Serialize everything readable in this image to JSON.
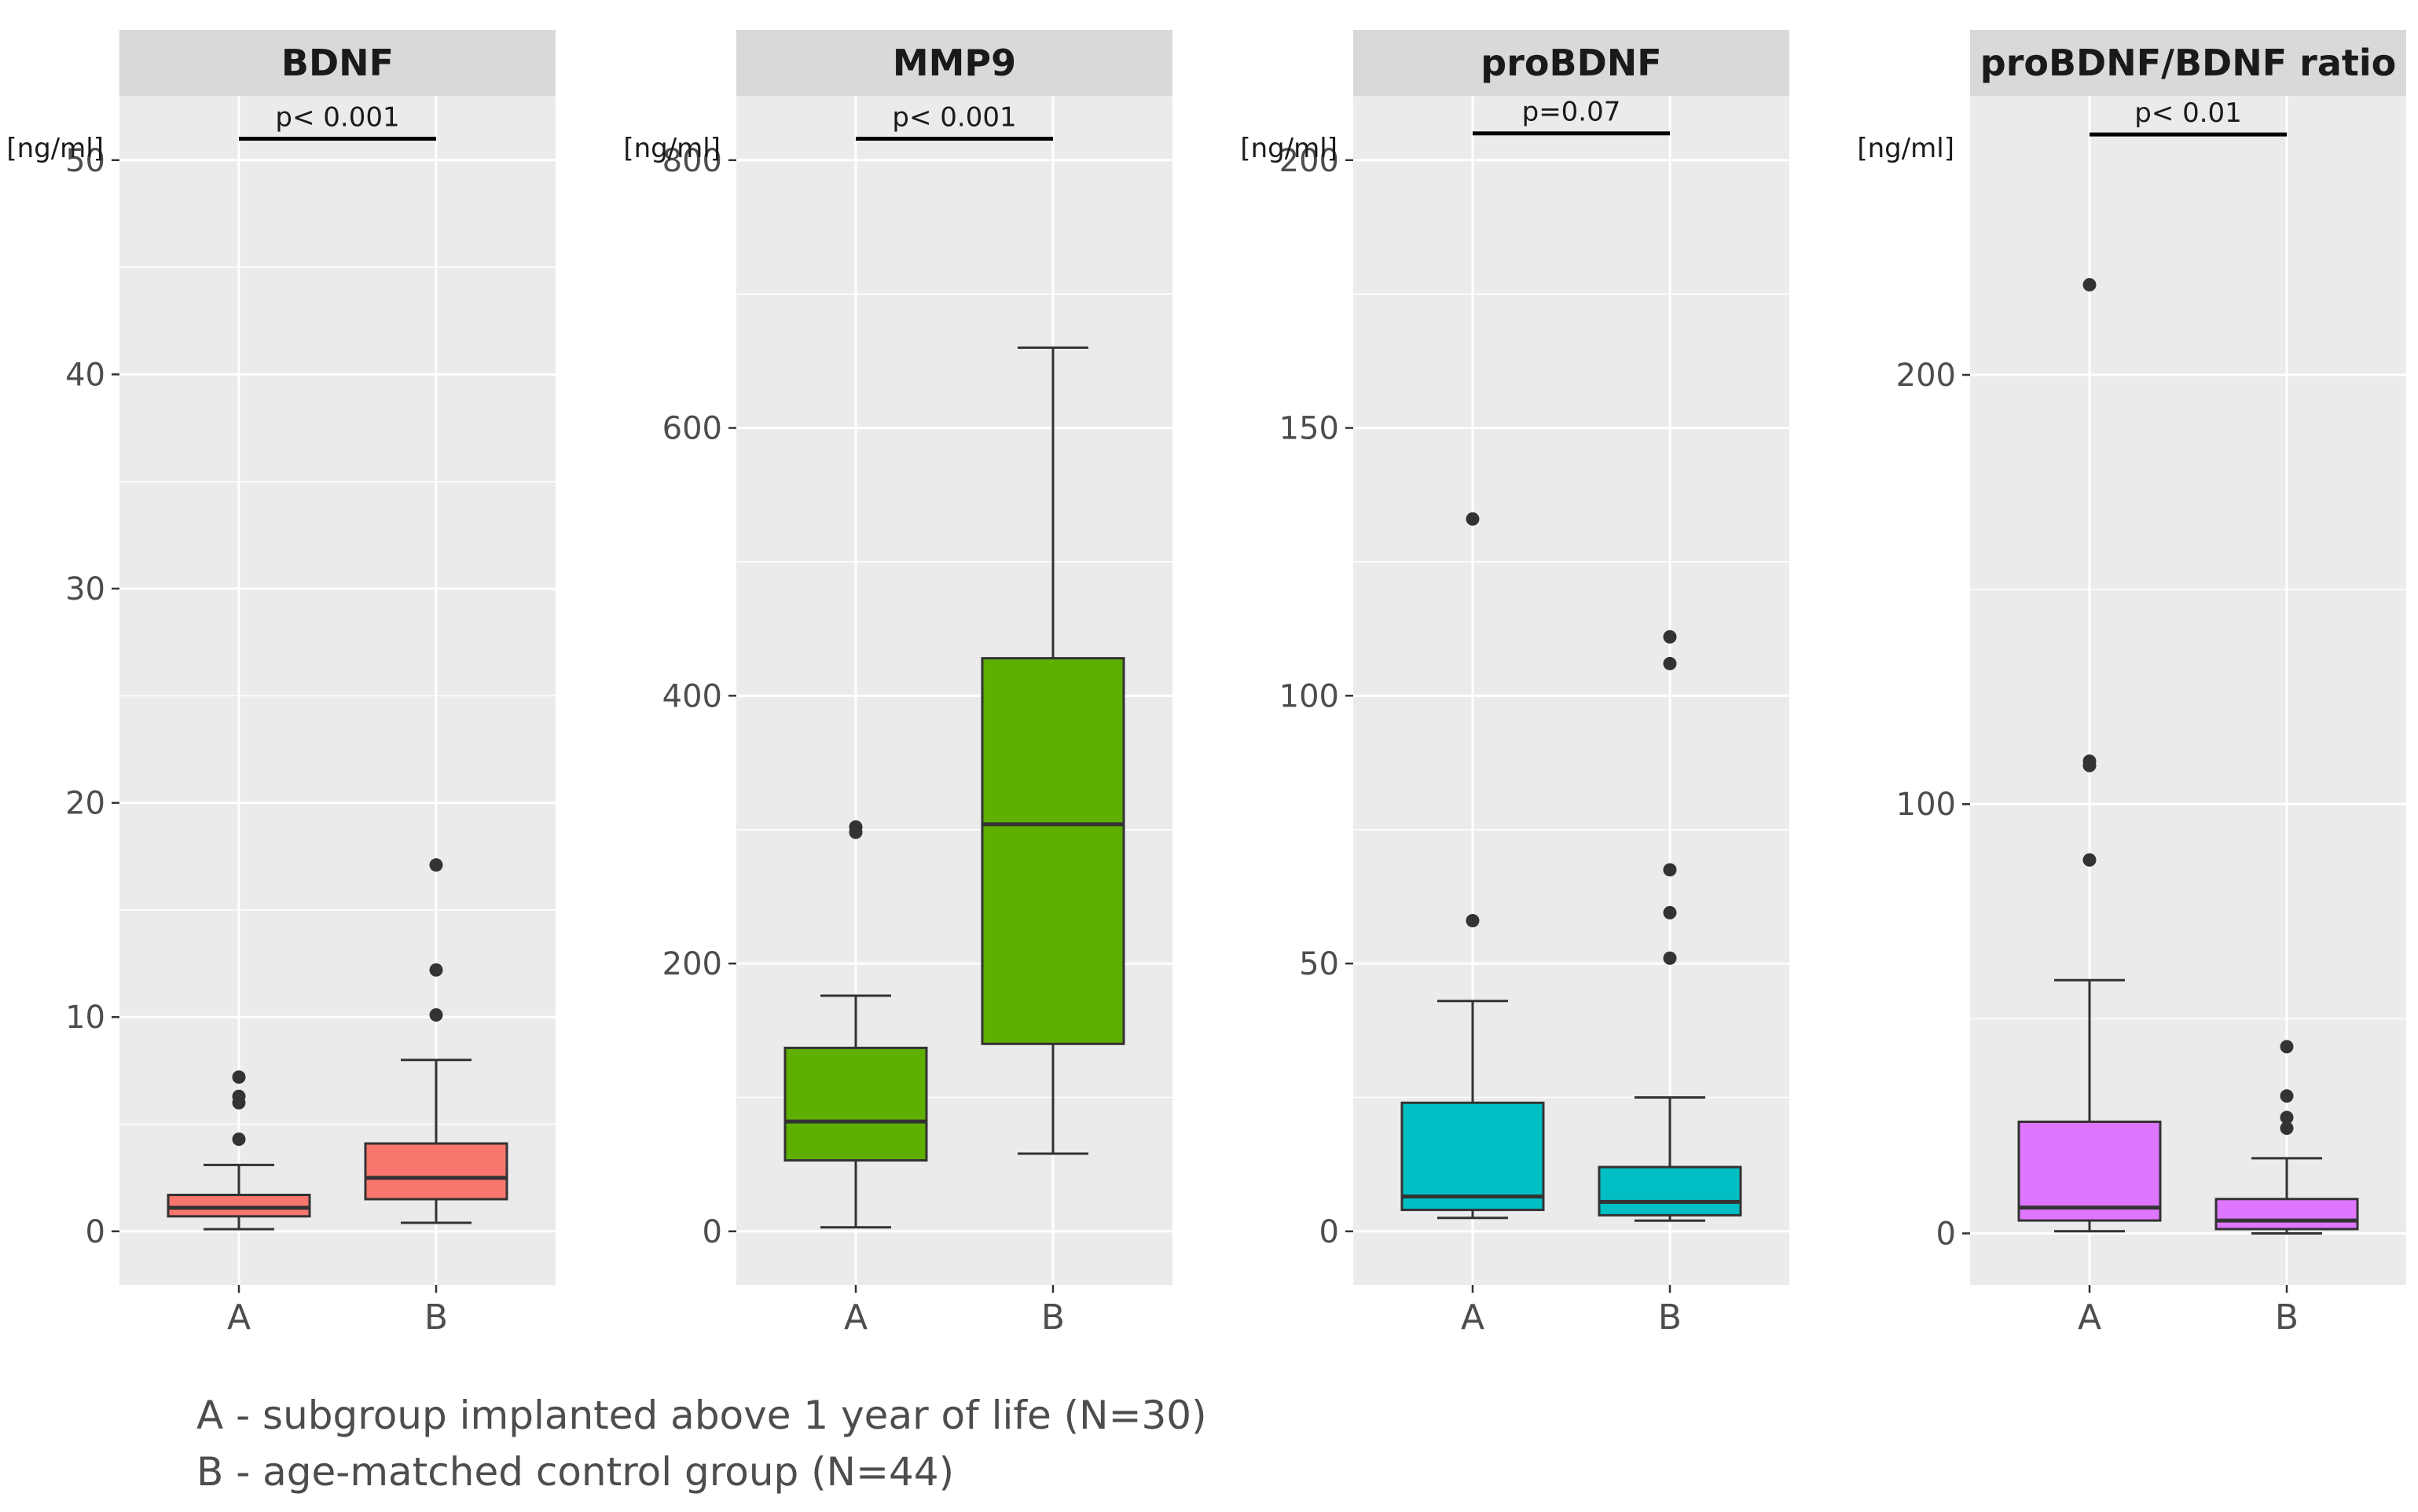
{
  "chart_data": [
    {
      "type": "boxplot",
      "title": "BDNF",
      "ylabel": "[ng/ml]",
      "ylim": [
        -2.5,
        53
      ],
      "yticks": [
        0,
        10,
        20,
        30,
        40,
        50
      ],
      "gridlines": true,
      "categories": [
        "A",
        "B"
      ],
      "fill": "#F8766D",
      "boxes": [
        {
          "group": "A",
          "whisker_low": 0.1,
          "q1": 0.7,
          "median": 1.1,
          "q3": 1.7,
          "whisker_high": 3.1,
          "outliers": [
            4.3,
            6.0,
            6.3,
            7.2
          ]
        },
        {
          "group": "B",
          "whisker_low": 0.4,
          "q1": 1.5,
          "median": 2.5,
          "q3": 4.1,
          "whisker_high": 8.0,
          "outliers": [
            10.1,
            12.2,
            17.1
          ]
        }
      ],
      "significance": {
        "label": "p< 0.001",
        "y": 51
      }
    },
    {
      "type": "boxplot",
      "title": "MMP9",
      "ylabel": "[ng/ml]",
      "ylim": [
        -40,
        848
      ],
      "yticks": [
        0,
        200,
        400,
        600,
        800
      ],
      "gridlines": true,
      "categories": [
        "A",
        "B"
      ],
      "fill": "#5EAF00",
      "boxes": [
        {
          "group": "A",
          "whisker_low": 3,
          "q1": 53,
          "median": 82,
          "q3": 137,
          "whisker_high": 176,
          "outliers": [
            298,
            302
          ]
        },
        {
          "group": "B",
          "whisker_low": 58,
          "q1": 140,
          "median": 304,
          "q3": 428,
          "whisker_high": 660,
          "outliers": []
        }
      ],
      "significance": {
        "label": "p< 0.001",
        "y": 816
      }
    },
    {
      "type": "boxplot",
      "title": "proBDNF",
      "ylabel": "[ng/ml]",
      "ylim": [
        -10,
        212
      ],
      "yticks": [
        0,
        50,
        100,
        150,
        200
      ],
      "gridlines": true,
      "categories": [
        "A",
        "B"
      ],
      "fill": "#00BFC4",
      "boxes": [
        {
          "group": "A",
          "whisker_low": 2.5,
          "q1": 4,
          "median": 6.5,
          "q3": 24,
          "whisker_high": 43,
          "outliers": [
            58,
            133
          ]
        },
        {
          "group": "B",
          "whisker_low": 2,
          "q1": 3,
          "median": 5.5,
          "q3": 12,
          "whisker_high": 25,
          "outliers": [
            51,
            59.5,
            67.5,
            106,
            111
          ]
        }
      ],
      "significance": {
        "label": "p=0.07",
        "y": 205
      }
    },
    {
      "type": "boxplot",
      "title": "proBDNF/BDNF ratio",
      "ylabel": "[ng/ml]",
      "ylim": [
        -12,
        265
      ],
      "yticks": [
        0,
        100,
        200
      ],
      "gridlines": true,
      "categories": [
        "A",
        "B"
      ],
      "fill": "#DF76FF",
      "boxes": [
        {
          "group": "A",
          "whisker_low": 0.5,
          "q1": 3,
          "median": 6,
          "q3": 26,
          "whisker_high": 59,
          "outliers": [
            87,
            109,
            110,
            221
          ]
        },
        {
          "group": "B",
          "whisker_low": 0,
          "q1": 1,
          "median": 3,
          "q3": 8,
          "whisker_high": 17.5,
          "outliers": [
            24.5,
            27,
            32,
            43.5
          ]
        }
      ],
      "significance": {
        "label": "p< 0.01",
        "y": 256
      }
    }
  ],
  "legend": {
    "line_a": "A - subgroup implanted above 1 year of life (N=30)",
    "line_b": "B - age-matched control group (N=44)"
  }
}
